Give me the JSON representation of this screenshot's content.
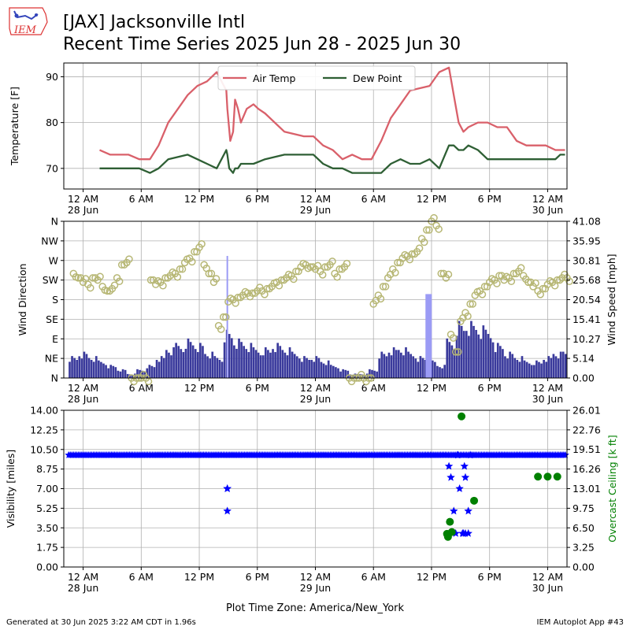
{
  "header": {
    "title_line1": "[JAX] Jacksonville Intl",
    "title_line2": "Recent Time Series 2025 Jun 28 - 2025 Jun 30",
    "logo_text": "IEM"
  },
  "footer": {
    "generated": "Generated at 30 Jun 2025 3:22 AM CDT in 1.96s",
    "app": "IEM Autoplot App #43",
    "timezone_label": "Plot Time Zone: America/New_York"
  },
  "colors": {
    "air_temp": "#d9606a",
    "dew_point": "#2e5f34",
    "wind_bar": "#3a3a9c",
    "gust_bar": "#9b9bf5",
    "wind_dir": "#b7b775",
    "visibility": "#0000ff",
    "ceiling": "#008000",
    "grid": "#b0b0b0"
  },
  "chart_data": [
    {
      "type": "line",
      "panel": "temperature",
      "ylabel": "Temperature [F]",
      "yticks": [
        70,
        80,
        90
      ],
      "ylim": [
        65.5,
        93
      ],
      "xlim": [
        -2,
        50
      ],
      "xticks": [
        {
          "h": 0,
          "label": "12 AM",
          "sub": "28 Jun"
        },
        {
          "h": 6,
          "label": "6 AM",
          "sub": ""
        },
        {
          "h": 12,
          "label": "12 PM",
          "sub": ""
        },
        {
          "h": 18,
          "label": "6 PM",
          "sub": ""
        },
        {
          "h": 24,
          "label": "12 AM",
          "sub": "29 Jun"
        },
        {
          "h": 30,
          "label": "6 AM",
          "sub": ""
        },
        {
          "h": 36,
          "label": "12 PM",
          "sub": ""
        },
        {
          "h": 42,
          "label": "6 PM",
          "sub": ""
        },
        {
          "h": 48,
          "label": "12 AM",
          "sub": "30 Jun"
        }
      ],
      "grid": true,
      "legend": "top-center",
      "series": [
        {
          "name": "Air Temp",
          "x": [
            1.7,
            2.8,
            4.7,
            5.8,
            6.9,
            7.8,
            8.8,
            10.8,
            11.8,
            12.8,
            13.8,
            14.8,
            14.9,
            15.2,
            15.5,
            15.7,
            16.0,
            16.3,
            16.9,
            17.6,
            18.1,
            18.8,
            20.8,
            22.8,
            23.8,
            24.8,
            25.8,
            26.8,
            27.8,
            28.8,
            29.8,
            30.8,
            31.8,
            32.8,
            33.8,
            35.8,
            36.8,
            37.8,
            38.3,
            38.8,
            39.3,
            39.8,
            40.8,
            41.8,
            42.8,
            43.8,
            44.8,
            45.8,
            46.8,
            47.8,
            48.8,
            49.8
          ],
          "y": [
            74,
            73,
            73,
            72,
            72,
            75,
            80,
            86,
            88,
            89,
            91,
            87,
            83,
            76,
            78,
            85,
            83,
            80,
            83,
            84,
            83,
            82,
            78,
            77,
            77,
            75,
            74,
            72,
            73,
            72,
            72,
            76,
            81,
            84,
            87,
            88,
            91,
            92,
            86,
            80,
            78,
            79,
            80,
            80,
            79,
            79,
            76,
            75,
            75,
            75,
            74,
            74
          ]
        },
        {
          "name": "Dew Point",
          "x": [
            1.7,
            2.8,
            4.7,
            5.8,
            6.9,
            7.8,
            8.8,
            10.8,
            11.8,
            12.8,
            13.8,
            14.8,
            14.9,
            15.1,
            15.5,
            15.7,
            16.0,
            16.3,
            16.9,
            17.6,
            18.8,
            20.8,
            21.8,
            22.8,
            23.8,
            24.8,
            25.8,
            26.8,
            27.8,
            28.8,
            30.8,
            31.8,
            32.8,
            33.8,
            34.8,
            35.8,
            36.8,
            37.8,
            38.3,
            38.8,
            39.3,
            39.8,
            40.8,
            41.8,
            42.8,
            44.8,
            46.8,
            48.8,
            49.3,
            49.8
          ],
          "y": [
            70,
            70,
            70,
            70,
            69,
            70,
            72,
            73,
            72,
            71,
            70,
            74,
            73,
            70,
            69,
            70,
            70,
            71,
            71,
            71,
            72,
            73,
            73,
            73,
            73,
            71,
            70,
            70,
            69,
            69,
            69,
            71,
            72,
            71,
            71,
            72,
            70,
            75,
            75,
            74,
            74,
            75,
            74,
            72,
            72,
            72,
            72,
            72,
            73,
            73
          ]
        }
      ]
    },
    {
      "type": "bar",
      "panel": "wind",
      "ylabel_left": "Wind Direction",
      "ylabel_right": "Wind Speed [mph]",
      "direction_ticks": [
        "N",
        "NE",
        "E",
        "SE",
        "S",
        "SW",
        "W",
        "NW",
        "N"
      ],
      "speed_ticks": [
        0.0,
        5.14,
        10.27,
        15.41,
        20.54,
        25.68,
        30.81,
        35.95,
        41.08
      ],
      "speed_ylim": [
        0,
        41.08
      ],
      "direction_ylim": [
        0,
        360
      ],
      "xlim": [
        -2,
        50
      ],
      "grid": true,
      "series": [
        {
          "name": "",
          "kind": "wind_speed",
          "x": [
            -1,
            0,
            1,
            2,
            3,
            4,
            5,
            6,
            7,
            8,
            9,
            10,
            11,
            12,
            13,
            14,
            15,
            16,
            17,
            18,
            19,
            20,
            21,
            22,
            23,
            24,
            25,
            26,
            27,
            28,
            29,
            30,
            31,
            32,
            33,
            34,
            35,
            36,
            37,
            38,
            39,
            40,
            41,
            42,
            43,
            44,
            45,
            46,
            47,
            48,
            49,
            50
          ],
          "y": [
            5,
            6,
            5,
            4,
            3,
            2,
            1,
            2,
            3,
            5,
            7,
            8,
            9,
            8,
            6,
            5,
            11,
            9,
            8,
            7,
            7,
            8,
            7,
            6,
            5,
            5,
            4,
            3,
            2,
            1,
            1,
            2,
            6,
            7,
            7,
            6,
            5,
            4,
            3,
            9,
            13,
            13,
            12,
            11,
            8,
            6,
            5,
            4,
            4,
            5,
            6,
            6
          ]
        },
        {
          "name": "",
          "kind": "wind_gust",
          "x": [
            14.9,
            35.7
          ],
          "y": [
            32,
            22
          ]
        },
        {
          "name": "",
          "kind": "wind_direction_deg",
          "x": [
            -1,
            -0.5,
            0,
            0.5,
            1,
            1.5,
            2,
            2.5,
            3,
            3.5,
            4,
            4.5,
            5,
            5.5,
            6,
            6.5,
            7,
            7.5,
            8,
            8.5,
            9,
            9.5,
            10,
            10.5,
            11,
            11.5,
            12,
            12.5,
            13,
            13.5,
            14,
            14.5,
            15,
            15.5,
            16,
            16.5,
            17,
            17.5,
            18,
            18.5,
            19,
            19.5,
            20,
            20.5,
            21,
            21.5,
            22,
            22.5,
            23,
            23.5,
            24,
            24.5,
            25,
            25.5,
            26,
            26.5,
            27,
            27.5,
            28,
            28.5,
            29,
            29.5,
            30,
            30.5,
            31,
            31.5,
            32,
            32.5,
            33,
            33.5,
            34,
            34.5,
            35,
            35.5,
            36,
            36.5,
            37,
            37.5,
            38,
            38.5,
            39,
            39.5,
            40,
            40.5,
            41,
            41.5,
            42,
            42.5,
            43,
            43.5,
            44,
            44.5,
            45,
            45.5,
            46,
            46.5,
            47,
            47.5,
            48,
            48.5,
            49,
            49.5,
            50
          ],
          "y": [
            240,
            230,
            220,
            215,
            230,
            225,
            210,
            200,
            205,
            230,
            260,
            265,
            0,
            0,
            0,
            0,
            225,
            215,
            220,
            230,
            235,
            240,
            250,
            265,
            275,
            290,
            300,
            260,
            240,
            220,
            120,
            140,
            175,
            180,
            185,
            190,
            195,
            195,
            200,
            200,
            205,
            210,
            220,
            225,
            230,
            235,
            245,
            255,
            260,
            255,
            250,
            245,
            255,
            260,
            240,
            250,
            255,
            0,
            0,
            0,
            0,
            0,
            170,
            190,
            210,
            230,
            250,
            265,
            275,
            280,
            285,
            290,
            320,
            340,
            360,
            350,
            240,
            230,
            100,
            60,
            130,
            150,
            170,
            190,
            200,
            210,
            220,
            225,
            235,
            225,
            230,
            240,
            245,
            235,
            220,
            210,
            200,
            205,
            215,
            220,
            225,
            230,
            230
          ]
        }
      ]
    },
    {
      "type": "scatter",
      "panel": "visibility_ceiling",
      "ylabel_left": "Visibility [miles]",
      "ylabel_right": "Overcast Ceiling [k ft]",
      "visibility_ticks": [
        0.0,
        1.75,
        3.5,
        5.25,
        7.0,
        8.75,
        10.5,
        12.25,
        14.0
      ],
      "ceiling_ticks": [
        0.0,
        3.25,
        6.5,
        9.75,
        13.01,
        16.26,
        19.51,
        22.76,
        26.01
      ],
      "visibility_ylim": [
        0,
        14
      ],
      "ceiling_ylim": [
        0,
        26.01
      ],
      "xlim": [
        -2,
        50
      ],
      "grid": true,
      "series": [
        {
          "name": "",
          "kind": "visibility_outliers",
          "x": [
            14.9,
            14.9,
            14.9,
            37.8,
            38.0,
            38.3,
            38.5,
            38.7,
            38.9,
            39.2,
            39.3,
            39.4,
            39.5,
            39.5,
            39.8,
            39.8,
            40.0
          ],
          "y": [
            7.0,
            7.0,
            5.0,
            9.0,
            8.0,
            5.0,
            3.0,
            10.0,
            7.0,
            3.0,
            3.0,
            9.0,
            8.0,
            3.0,
            3.0,
            5.0,
            10.0
          ]
        },
        {
          "name": "",
          "kind": "visibility_baseline",
          "x_range": [
            -1.5,
            49.9
          ],
          "y": 10.0
        },
        {
          "name": "",
          "kind": "overcast_ceiling",
          "x": [
            37.6,
            37.7,
            37.9,
            38.1,
            39.1,
            40.4,
            47.0,
            48.0,
            49.0
          ],
          "y": [
            5.5,
            5.0,
            7.5,
            5.8,
            25.0,
            11.0,
            15.0,
            15.0,
            15.0
          ]
        }
      ]
    }
  ]
}
